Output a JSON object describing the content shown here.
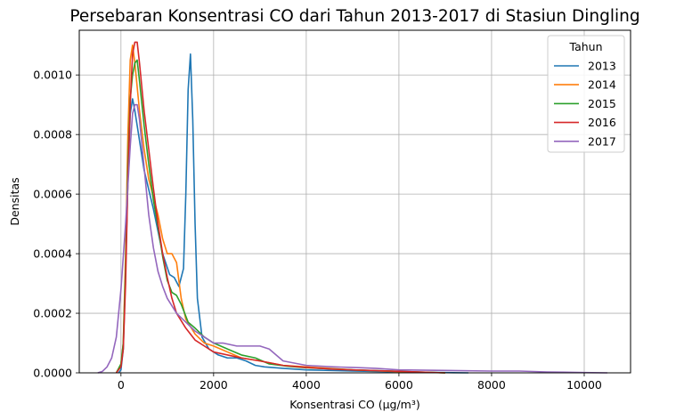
{
  "chart_data": {
    "type": "line",
    "title": "Persebaran Konsentrasi CO dari Tahun 2013-2017 di Stasiun Dingling",
    "xlabel": "Konsentrasi CO (µg/m³)",
    "ylabel": "Densitas",
    "xlim": [
      -900,
      11000
    ],
    "ylim": [
      0,
      0.00115
    ],
    "xticks": [
      0,
      2000,
      4000,
      6000,
      8000,
      10000
    ],
    "yticks": [
      0.0,
      0.0002,
      0.0004,
      0.0006,
      0.0008,
      0.001
    ],
    "ytick_labels": [
      "0.0000",
      "0.0002",
      "0.0004",
      "0.0006",
      "0.0008",
      "0.0010"
    ],
    "grid": true,
    "legend": {
      "title": "Tahun",
      "placement": "top-right"
    },
    "series": [
      {
        "name": "2013",
        "color": "#1f77b4",
        "points": [
          [
            -50,
            0
          ],
          [
            0,
            1e-05
          ],
          [
            50,
            8e-05
          ],
          [
            100,
            0.00035
          ],
          [
            150,
            0.00065
          ],
          [
            200,
            0.00087
          ],
          [
            250,
            0.00092
          ],
          [
            300,
            0.00088
          ],
          [
            400,
            0.00078
          ],
          [
            500,
            0.00068
          ],
          [
            700,
            0.00055
          ],
          [
            900,
            0.0004
          ],
          [
            1050,
            0.00033
          ],
          [
            1150,
            0.00032
          ],
          [
            1250,
            0.00029
          ],
          [
            1350,
            0.00035
          ],
          [
            1400,
            0.0006
          ],
          [
            1450,
            0.00095
          ],
          [
            1500,
            0.00107
          ],
          [
            1550,
            0.00085
          ],
          [
            1600,
            0.0005
          ],
          [
            1650,
            0.00025
          ],
          [
            1750,
            0.00012
          ],
          [
            1900,
            8e-05
          ],
          [
            2100,
            6e-05
          ],
          [
            2300,
            5e-05
          ],
          [
            2500,
            5e-05
          ],
          [
            2700,
            4e-05
          ],
          [
            2900,
            2.5e-05
          ],
          [
            3100,
            2e-05
          ],
          [
            3500,
            1.5e-05
          ],
          [
            4000,
            1e-05
          ],
          [
            5000,
            6e-06
          ],
          [
            6000,
            3e-06
          ],
          [
            7000,
            1e-06
          ],
          [
            7500,
            0
          ]
        ]
      },
      {
        "name": "2014",
        "color": "#ff7f0e",
        "points": [
          [
            -100,
            0
          ],
          [
            0,
            3e-05
          ],
          [
            50,
            0.0001
          ],
          [
            100,
            0.0004
          ],
          [
            150,
            0.0008
          ],
          [
            200,
            0.00105
          ],
          [
            250,
            0.0011
          ],
          [
            300,
            0.00104
          ],
          [
            400,
            0.00088
          ],
          [
            500,
            0.00075
          ],
          [
            600,
            0.00065
          ],
          [
            800,
            0.00053
          ],
          [
            900,
            0.00045
          ],
          [
            1000,
            0.0004
          ],
          [
            1100,
            0.0004
          ],
          [
            1200,
            0.00037
          ],
          [
            1300,
            0.00025
          ],
          [
            1400,
            0.00018
          ],
          [
            1600,
            0.00013
          ],
          [
            1800,
            0.0001
          ],
          [
            2000,
            9e-05
          ],
          [
            2300,
            7e-05
          ],
          [
            2600,
            5e-05
          ],
          [
            3000,
            4e-05
          ],
          [
            3500,
            2.5e-05
          ],
          [
            4000,
            2e-05
          ],
          [
            5000,
            1e-05
          ],
          [
            6000,
            4e-06
          ],
          [
            7000,
            0
          ]
        ]
      },
      {
        "name": "2015",
        "color": "#2ca02c",
        "points": [
          [
            -100,
            0
          ],
          [
            0,
            3e-05
          ],
          [
            50,
            0.0001
          ],
          [
            100,
            0.00035
          ],
          [
            150,
            0.0007
          ],
          [
            200,
            0.00092
          ],
          [
            250,
            0.001
          ],
          [
            300,
            0.00104
          ],
          [
            350,
            0.00105
          ],
          [
            400,
            0.00098
          ],
          [
            500,
            0.00083
          ],
          [
            600,
            0.0007
          ],
          [
            700,
            0.00058
          ],
          [
            800,
            0.00049
          ],
          [
            900,
            0.00039
          ],
          [
            1000,
            0.00031
          ],
          [
            1100,
            0.00027
          ],
          [
            1200,
            0.00026
          ],
          [
            1300,
            0.00023
          ],
          [
            1450,
            0.00017
          ],
          [
            1600,
            0.00015
          ],
          [
            1800,
            0.00012
          ],
          [
            2000,
            0.0001
          ],
          [
            2300,
            8e-05
          ],
          [
            2600,
            6e-05
          ],
          [
            2900,
            5e-05
          ],
          [
            3200,
            3e-05
          ],
          [
            3600,
            2.2e-05
          ],
          [
            4000,
            1.7e-05
          ],
          [
            5000,
            1e-05
          ],
          [
            6000,
            5e-06
          ],
          [
            7000,
            0
          ]
        ]
      },
      {
        "name": "2016",
        "color": "#d62728",
        "points": [
          [
            -100,
            0
          ],
          [
            0,
            2e-05
          ],
          [
            50,
            8e-05
          ],
          [
            100,
            0.0003
          ],
          [
            150,
            0.00065
          ],
          [
            200,
            0.0009
          ],
          [
            250,
            0.00107
          ],
          [
            300,
            0.00111
          ],
          [
            350,
            0.00111
          ],
          [
            400,
            0.00104
          ],
          [
            500,
            0.00088
          ],
          [
            600,
            0.00075
          ],
          [
            700,
            0.00062
          ],
          [
            800,
            0.0005
          ],
          [
            900,
            0.0004
          ],
          [
            1000,
            0.00032
          ],
          [
            1100,
            0.00025
          ],
          [
            1200,
            0.0002
          ],
          [
            1400,
            0.00015
          ],
          [
            1600,
            0.00011
          ],
          [
            1800,
            9e-05
          ],
          [
            2000,
            7e-05
          ],
          [
            2300,
            6e-05
          ],
          [
            2600,
            5e-05
          ],
          [
            3000,
            4e-05
          ],
          [
            3500,
            2.5e-05
          ],
          [
            4000,
            1.8e-05
          ],
          [
            4600,
            1.2e-05
          ],
          [
            5000,
            1e-05
          ],
          [
            6000,
            5e-06
          ],
          [
            7000,
            0
          ]
        ]
      },
      {
        "name": "2017",
        "color": "#9467bd",
        "points": [
          [
            -500,
            0
          ],
          [
            -400,
            5e-06
          ],
          [
            -300,
            2e-05
          ],
          [
            -200,
            5e-05
          ],
          [
            -100,
            0.00012
          ],
          [
            0,
            0.00028
          ],
          [
            100,
            0.0005
          ],
          [
            150,
            0.00063
          ],
          [
            200,
            0.00076
          ],
          [
            250,
            0.00087
          ],
          [
            300,
            0.0009
          ],
          [
            350,
            0.0009
          ],
          [
            400,
            0.00085
          ],
          [
            500,
            0.00069
          ],
          [
            600,
            0.00053
          ],
          [
            700,
            0.00042
          ],
          [
            800,
            0.00034
          ],
          [
            900,
            0.00029
          ],
          [
            1000,
            0.00025
          ],
          [
            1200,
            0.0002
          ],
          [
            1400,
            0.00017
          ],
          [
            1600,
            0.00014
          ],
          [
            1800,
            0.00012
          ],
          [
            2000,
            0.0001
          ],
          [
            2200,
            0.0001
          ],
          [
            2500,
            9e-05
          ],
          [
            3000,
            9e-05
          ],
          [
            3200,
            8e-05
          ],
          [
            3500,
            4e-05
          ],
          [
            4000,
            2.5e-05
          ],
          [
            4600,
            2e-05
          ],
          [
            5000,
            1.8e-05
          ],
          [
            5500,
            1.5e-05
          ],
          [
            6000,
            1e-05
          ],
          [
            7000,
            8e-06
          ],
          [
            8000,
            6e-06
          ],
          [
            8600,
            6e-06
          ],
          [
            9200,
            3e-06
          ],
          [
            10000,
            1e-06
          ],
          [
            10500,
            0
          ]
        ]
      }
    ]
  }
}
